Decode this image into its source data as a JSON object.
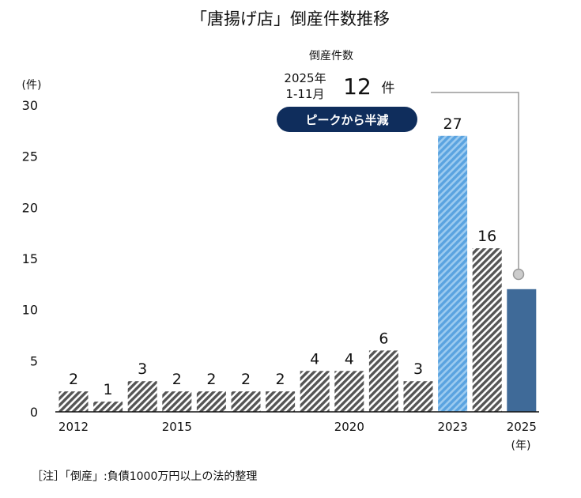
{
  "chart_data": {
    "type": "bar",
    "title": "「唐揚げ店」倒産件数推移",
    "ylabel": "(件)",
    "xlabel": "(年)",
    "ylim": [
      0,
      30
    ],
    "yticks": [
      0,
      5,
      10,
      15,
      20,
      25,
      30
    ],
    "categories": [
      "2012",
      "2013",
      "2014",
      "2015",
      "2016",
      "2017",
      "2018",
      "2019",
      "2020",
      "2021",
      "2022",
      "2023",
      "2024",
      "2025"
    ],
    "xtick_labels": [
      "2012",
      "2015",
      "2020",
      "2023",
      "2025"
    ],
    "values": [
      2,
      1,
      3,
      2,
      2,
      2,
      2,
      4,
      4,
      6,
      3,
      27,
      16,
      12
    ],
    "data_labels": [
      "2",
      "1",
      "3",
      "2",
      "2",
      "2",
      "2",
      "4",
      "4",
      "6",
      "3",
      "27",
      "16",
      ""
    ],
    "colors": {
      "default": "#555555",
      "peak": "#6aaee6",
      "latest": "#3f6a98",
      "callout": "#0f2d5c"
    },
    "annotation": {
      "heading": "倒産件数",
      "period_line1": "2025年",
      "period_line2": "1-11月",
      "value": "12",
      "unit": "件",
      "badge": "ピークから半減"
    },
    "note": "［注］「倒産」:負債1000万円以上の法的整理"
  }
}
